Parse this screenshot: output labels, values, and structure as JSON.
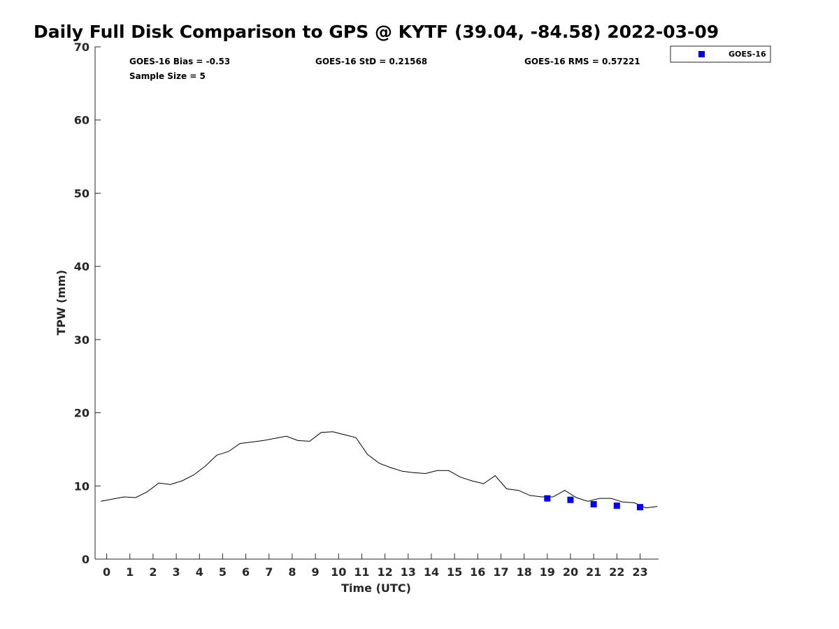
{
  "chart_data": {
    "type": "line",
    "title": "Daily Full Disk Comparison to GPS @ KYTF (39.04, -84.58) 2022-03-09",
    "xlabel": "Time (UTC)",
    "ylabel": "TPW (mm)",
    "xlim": [
      -0.5,
      23.8
    ],
    "ylim": [
      0,
      70
    ],
    "xticks": [
      0,
      1,
      2,
      3,
      4,
      5,
      6,
      7,
      8,
      9,
      10,
      11,
      12,
      13,
      14,
      15,
      16,
      17,
      18,
      19,
      20,
      21,
      22,
      23
    ],
    "yticks": [
      0,
      10,
      20,
      30,
      40,
      50,
      60,
      70
    ],
    "grid": false,
    "legend_position": "outside top-right",
    "stats": {
      "bias": "GOES-16 Bias = -0.53",
      "std": "GOES-16 StD = 0.21568",
      "rms": "GOES-16 RMS = 0.57221",
      "sample_size": "Sample Size = 5"
    },
    "series": [
      {
        "type": "line",
        "color": "#000000",
        "x": [
          -0.25,
          0.25,
          0.75,
          1.25,
          1.75,
          2.25,
          2.75,
          3.25,
          3.75,
          4.25,
          4.75,
          5.25,
          5.75,
          6.25,
          6.75,
          7.25,
          7.75,
          8.25,
          8.75,
          9.25,
          9.75,
          10.25,
          10.75,
          11.25,
          11.75,
          12.25,
          12.75,
          13.25,
          13.75,
          14.25,
          14.75,
          15.25,
          15.75,
          16.25,
          16.75,
          17.25,
          17.75,
          18.25,
          18.75,
          19.25,
          19.75,
          20.25,
          20.75,
          21.25,
          21.75,
          22.25,
          22.75,
          23.25,
          23.75
        ],
        "y": [
          7.9,
          8.2,
          8.5,
          8.4,
          9.2,
          10.4,
          10.2,
          10.7,
          11.5,
          12.7,
          14.2,
          14.7,
          15.8,
          16.0,
          16.2,
          16.5,
          16.8,
          16.2,
          16.1,
          17.3,
          17.4,
          17.0,
          16.6,
          14.3,
          13.1,
          12.5,
          12.0,
          11.8,
          11.7,
          12.1,
          12.1,
          11.2,
          10.7,
          10.3,
          11.4,
          9.6,
          9.4,
          8.7,
          8.5,
          8.5,
          9.4,
          8.4,
          7.9,
          8.3,
          8.3,
          7.8,
          7.7,
          7.0,
          7.2
        ]
      },
      {
        "name": "GOES-16",
        "type": "scatter",
        "marker": "square",
        "color": "#0000ff",
        "x": [
          19,
          20,
          21,
          22,
          23
        ],
        "y": [
          8.3,
          8.1,
          7.5,
          7.3,
          7.1
        ]
      }
    ]
  }
}
